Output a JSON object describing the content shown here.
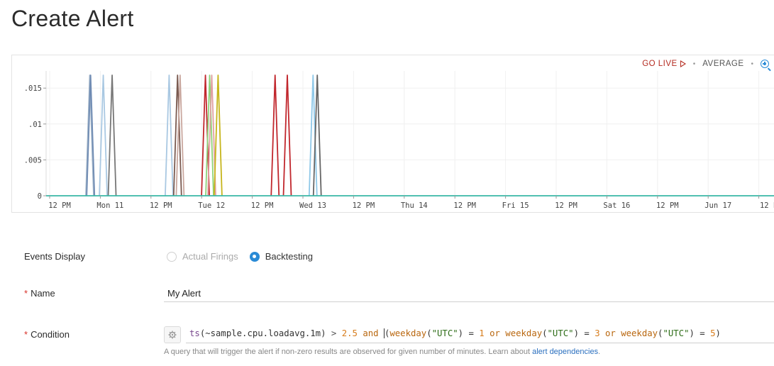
{
  "page": {
    "title": "Create Alert"
  },
  "chart_toolbar": {
    "go_live": "GO LIVE",
    "separator": "•",
    "average": "AVERAGE"
  },
  "chart_data": {
    "type": "line",
    "y_ticks": [
      ".015",
      ".01",
      ".005",
      "0"
    ],
    "y_values": [
      0.015,
      0.01,
      0.005,
      0
    ],
    "ylim": [
      0,
      0.0168
    ],
    "x_ticks": [
      "12 PM",
      "Mon 11",
      "12 PM",
      "Tue 12",
      "12 PM",
      "Wed 13",
      "12 PM",
      "Thu 14",
      "12 PM",
      "Fri 15",
      "12 PM",
      "Sat 16",
      "12 PM",
      "Jun 17",
      "12 P"
    ],
    "x_tick_hours": [
      12,
      24,
      36,
      48,
      60,
      72,
      84,
      96,
      108,
      120,
      132,
      144,
      156,
      168,
      180
    ],
    "grid": true,
    "baseline_color": "#3ab7a6",
    "spikes": [
      {
        "hour": 21.5,
        "value": 0.0168,
        "color": "#9fb3c8"
      },
      {
        "hour": 21.7,
        "value": 0.0168,
        "color": "#6f8bb3"
      },
      {
        "hour": 24.7,
        "value": 0.0168,
        "color": "#a9c8e2"
      },
      {
        "hour": 26.8,
        "value": 0.0168,
        "color": "#777777"
      },
      {
        "hour": 40.3,
        "value": 0.0168,
        "color": "#a9c8e2"
      },
      {
        "hour": 42.3,
        "value": 0.0168,
        "color": "#7a5a50"
      },
      {
        "hour": 42.9,
        "value": 0.0168,
        "color": "#c9a79e"
      },
      {
        "hour": 48.9,
        "value": 0.0168,
        "color": "#c1272d"
      },
      {
        "hour": 49.9,
        "value": 0.0168,
        "color": "#8fd37a"
      },
      {
        "hour": 50.4,
        "value": 0.0168,
        "color": "#e0a0a0"
      },
      {
        "hour": 51.9,
        "value": 0.0168,
        "color": "#c6b51c"
      },
      {
        "hour": 65.4,
        "value": 0.0168,
        "color": "#c1272d"
      },
      {
        "hour": 68.3,
        "value": 0.0168,
        "color": "#c1272d"
      },
      {
        "hour": 74.4,
        "value": 0.0168,
        "color": "#8fc8e8"
      },
      {
        "hour": 75.4,
        "value": 0.0168,
        "color": "#666666"
      }
    ]
  },
  "events_display": {
    "label": "Events Display",
    "options": [
      {
        "label": "Actual Firings",
        "selected": false
      },
      {
        "label": "Backtesting",
        "selected": true
      }
    ]
  },
  "name_field": {
    "required_mark": "*",
    "label": "Name",
    "value": "My Alert"
  },
  "condition_field": {
    "required_mark": "*",
    "label": "Condition",
    "query_parts": [
      {
        "t": "ts",
        "c": "q-fn"
      },
      {
        "t": "(~sample.cpu.loadavg.1m)",
        "c": "q-plain"
      },
      {
        "t": " > ",
        "c": "q-op"
      },
      {
        "t": "2.5",
        "c": "q-num"
      },
      {
        "t": " and ",
        "c": "q-kw"
      },
      {
        "t": "(",
        "c": "q-plain q-cursor"
      },
      {
        "t": "weekday",
        "c": "q-kw"
      },
      {
        "t": "(",
        "c": "q-plain"
      },
      {
        "t": "\"UTC\"",
        "c": "q-str"
      },
      {
        "t": ") = ",
        "c": "q-plain"
      },
      {
        "t": "1",
        "c": "q-num"
      },
      {
        "t": " or ",
        "c": "q-kw"
      },
      {
        "t": "weekday",
        "c": "q-kw"
      },
      {
        "t": "(",
        "c": "q-plain"
      },
      {
        "t": "\"UTC\"",
        "c": "q-str"
      },
      {
        "t": ") = ",
        "c": "q-plain"
      },
      {
        "t": "3",
        "c": "q-num"
      },
      {
        "t": " or ",
        "c": "q-kw"
      },
      {
        "t": "weekday",
        "c": "q-kw"
      },
      {
        "t": "(",
        "c": "q-plain"
      },
      {
        "t": "\"UTC\"",
        "c": "q-str"
      },
      {
        "t": ") = ",
        "c": "q-plain"
      },
      {
        "t": "5",
        "c": "q-num"
      },
      {
        "t": ")",
        "c": "q-plain"
      }
    ],
    "help_text": "A query that will trigger the alert if non-zero results are observed for given number of minutes. Learn about ",
    "help_link": "alert dependencies",
    "help_end": "."
  }
}
